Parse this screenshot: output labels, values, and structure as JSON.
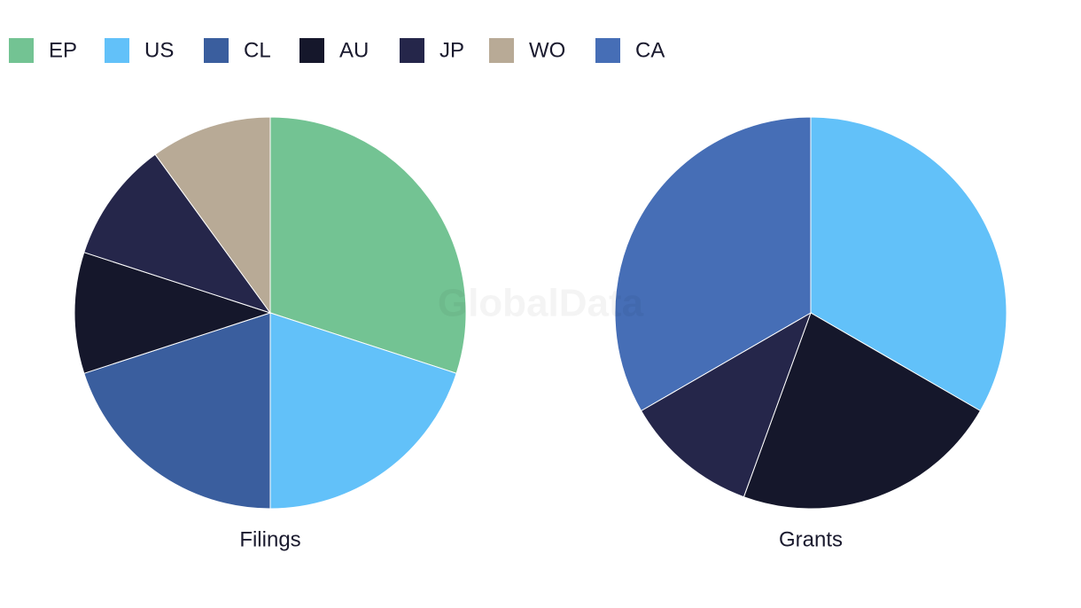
{
  "legend": {
    "items": [
      {
        "name": "EP",
        "color": "#73c393"
      },
      {
        "name": "US",
        "color": "#62c1f9"
      },
      {
        "name": "CL",
        "color": "#3a5e9e"
      },
      {
        "name": "AU",
        "color": "#15172b"
      },
      {
        "name": "JP",
        "color": "#25264a"
      },
      {
        "name": "WO",
        "color": "#b8aa96"
      },
      {
        "name": "CA",
        "color": "#466eb6"
      }
    ]
  },
  "watermark": "GlobalData",
  "chart_data": [
    {
      "type": "pie",
      "title": "Filings",
      "categories": [
        "EP",
        "US",
        "CL",
        "AU",
        "JP",
        "WO"
      ],
      "values": [
        30,
        20,
        20,
        10,
        10,
        10
      ],
      "colors": [
        "#73c393",
        "#62c1f9",
        "#3a5e9e",
        "#15172b",
        "#25264a",
        "#b8aa96"
      ]
    },
    {
      "type": "pie",
      "title": "Grants",
      "categories": [
        "US",
        "AU",
        "JP",
        "CA"
      ],
      "values": [
        33.3,
        22.2,
        11.1,
        33.3
      ],
      "colors": [
        "#62c1f9",
        "#15172b",
        "#25264a",
        "#466eb6"
      ]
    }
  ]
}
